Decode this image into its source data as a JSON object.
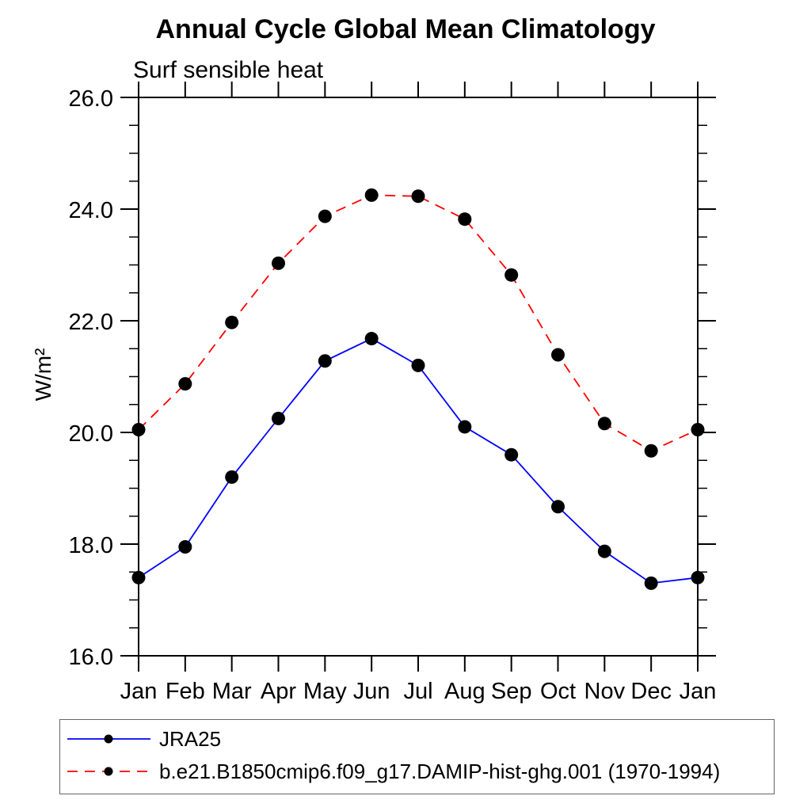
{
  "header": {
    "title": "Annual Cycle Global Mean Climatology",
    "subtitle": "Surf sensible heat"
  },
  "chart_data": {
    "type": "line",
    "title": "Annual Cycle Global Mean Climatology",
    "subtitle": "Surf sensible heat",
    "xlabel": "",
    "ylabel": "W/m²",
    "x_categories": [
      "Jan",
      "Feb",
      "Mar",
      "Apr",
      "May",
      "Jun",
      "Jul",
      "Aug",
      "Sep",
      "Oct",
      "Nov",
      "Dec",
      "Jan"
    ],
    "ylim": [
      16.0,
      26.0
    ],
    "y_major_ticks": [
      16.0,
      18.0,
      20.0,
      22.0,
      24.0,
      26.0
    ],
    "y_tick_labels": [
      "16.0",
      "18.0",
      "20.0",
      "22.0",
      "24.0",
      "26.0"
    ],
    "y_minor_step": 0.5,
    "grid": false,
    "frame": "box-with-outward-ticks",
    "legend_position": "bottom-left-box",
    "axis_color": "#000000",
    "marker_color": "#000000",
    "series": [
      {
        "name": "JRA25",
        "color": "#0000ff",
        "line_style": "solid",
        "marker": "filled-circle",
        "values": [
          17.4,
          17.95,
          19.2,
          20.25,
          21.28,
          21.68,
          21.2,
          20.1,
          19.6,
          18.67,
          17.87,
          17.3,
          17.4
        ]
      },
      {
        "name": "b.e21.B1850cmip6.f09_g17.DAMIP-hist-ghg.001 (1970-1994)",
        "color": "#ff0000",
        "line_style": "dashed",
        "marker": "filled-circle",
        "values": [
          20.05,
          20.87,
          21.97,
          23.03,
          23.87,
          24.25,
          24.23,
          23.82,
          22.82,
          21.39,
          20.16,
          19.67,
          20.05
        ]
      }
    ]
  }
}
